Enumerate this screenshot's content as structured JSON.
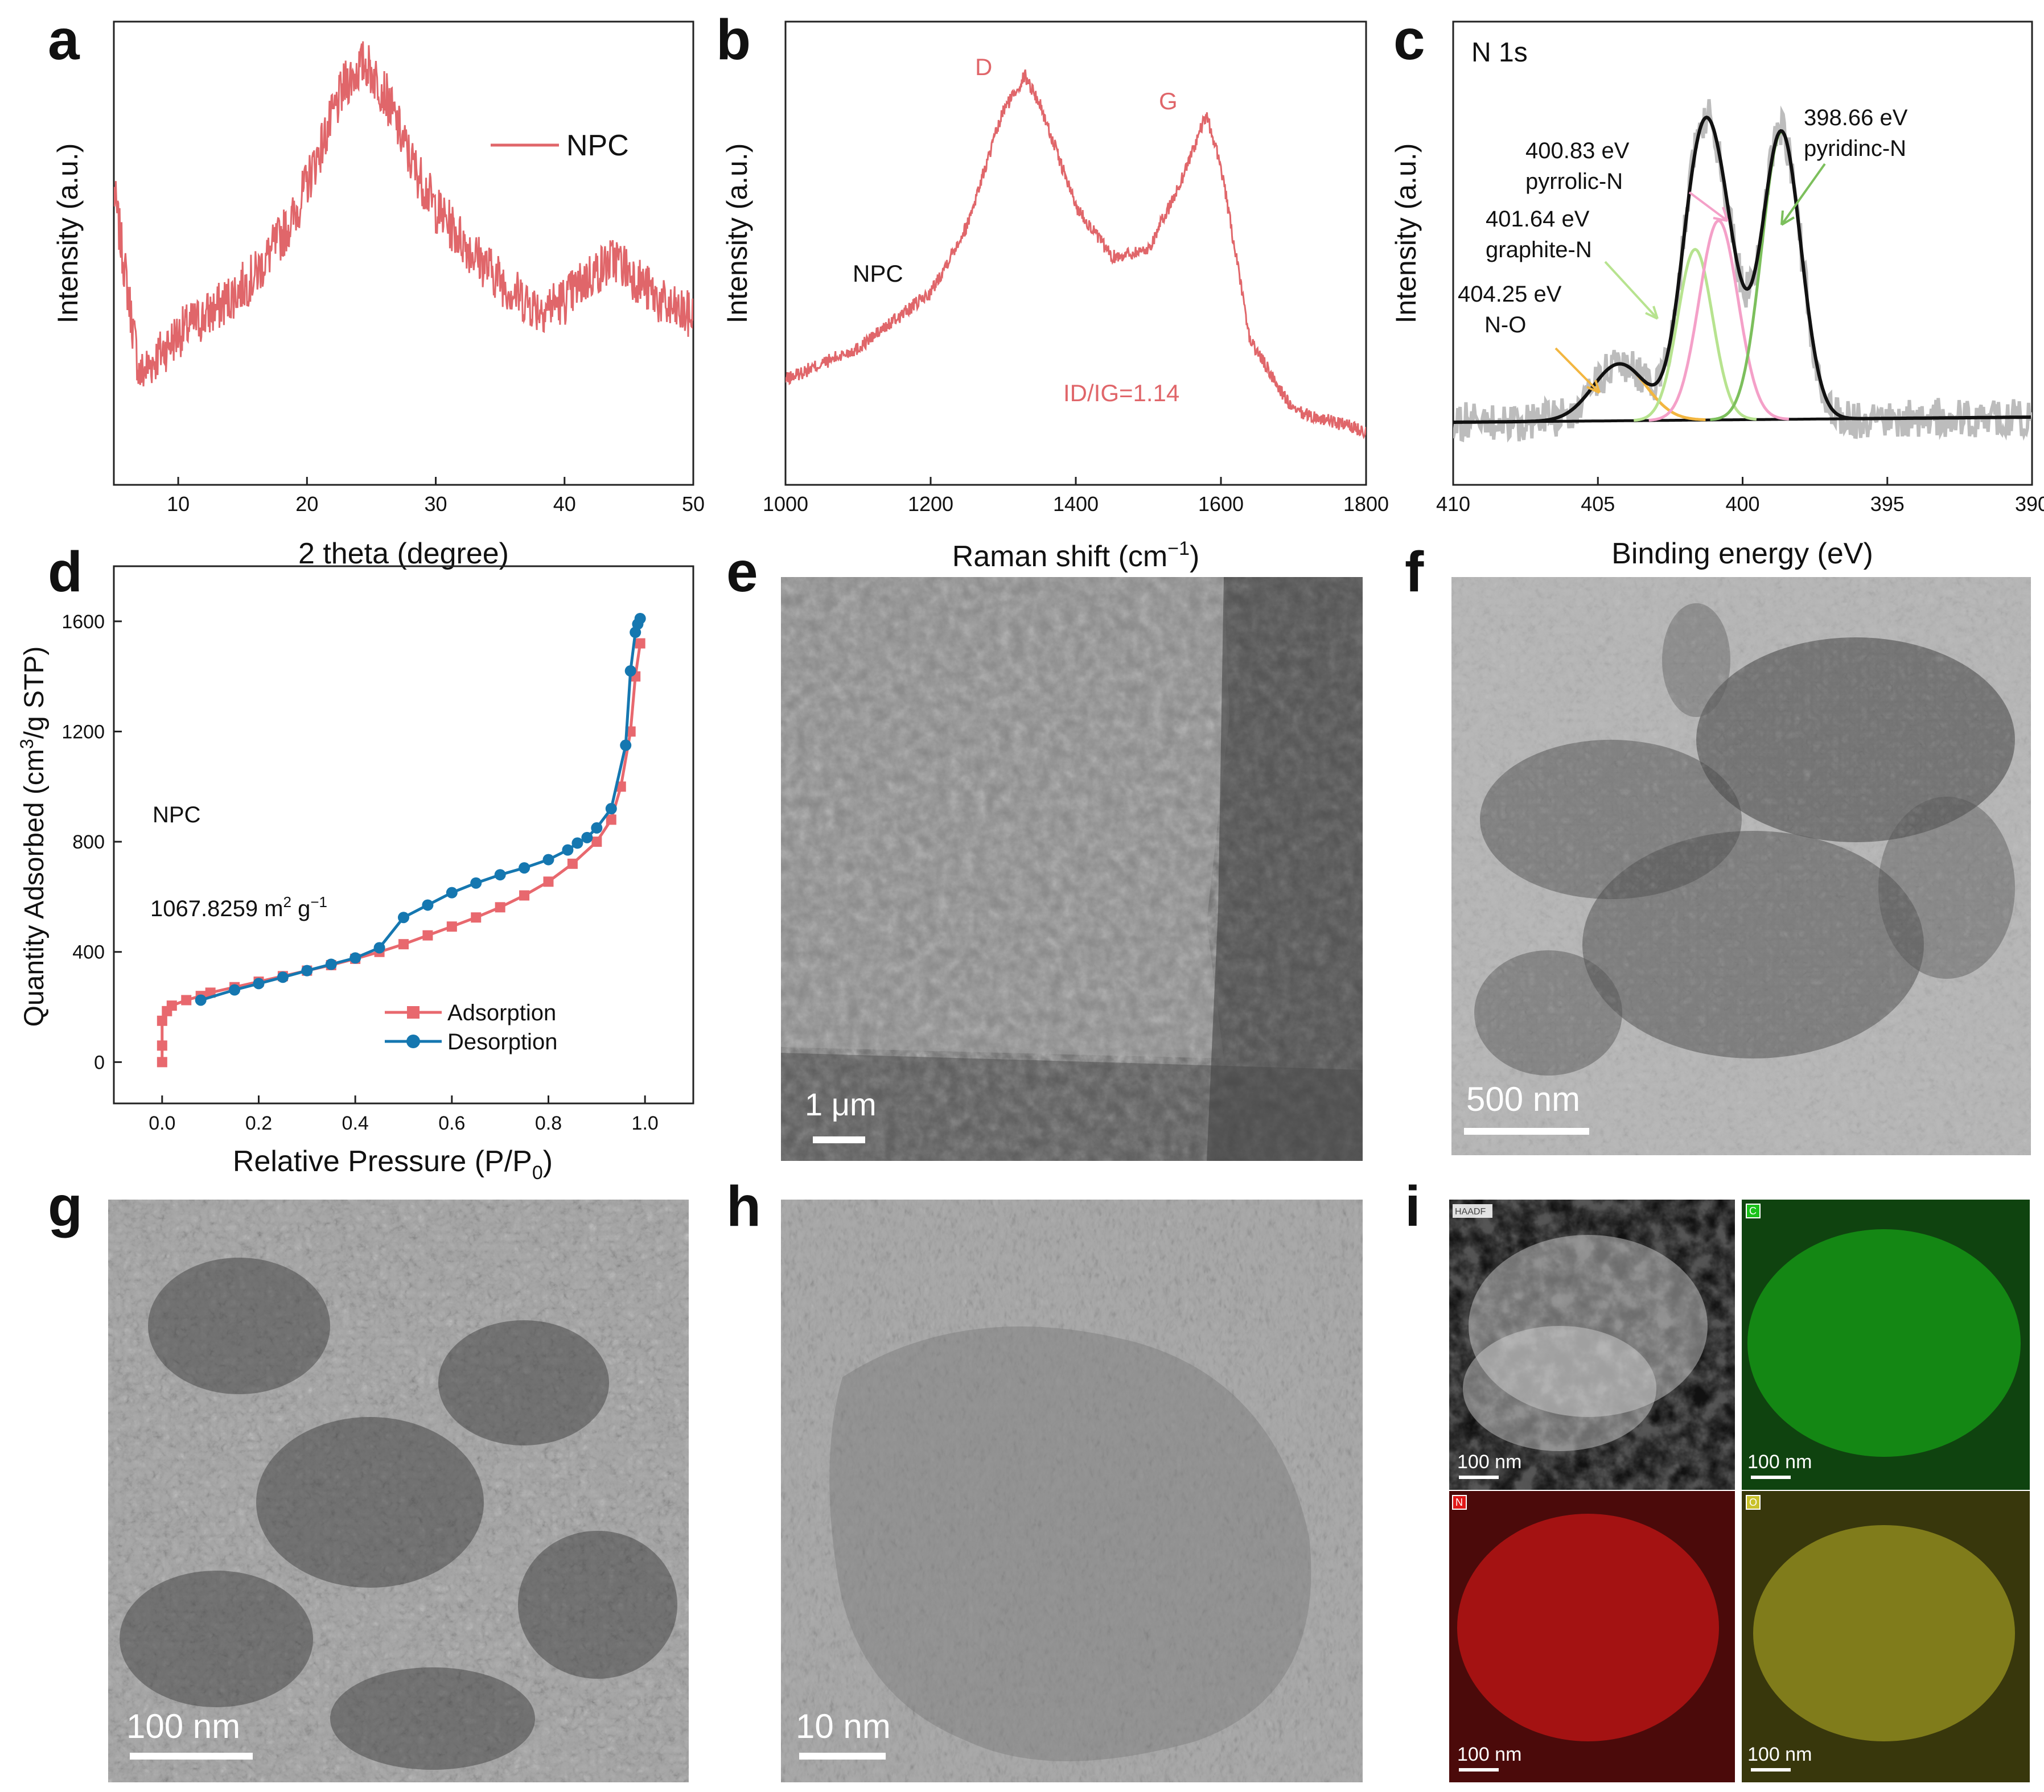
{
  "panel_letters": [
    "a",
    "b",
    "c",
    "d",
    "e",
    "f",
    "g",
    "h",
    "i"
  ],
  "colors": {
    "npc_line": "#e0666a",
    "adsorption": "#e8686e",
    "desorption": "#1577b0",
    "raw_xps": "#bcbcbc",
    "envelope": "#111111",
    "no_fit": "#f2b640",
    "graphitic_fit": "#b7e38f",
    "pyrrolic_fit": "#f4a0c8",
    "pyridinic_fit": "#7cbf5c",
    "eds_c": "#19c119",
    "eds_n": "#e01818",
    "eds_o": "#c9c12a",
    "annotation_red": "#e0666a"
  },
  "text": {
    "a_xlabel": "2 theta (degree)",
    "a_ylabel": "Intensity (a.u.)",
    "a_legend": "NPC",
    "b_xlabel": "Raman shift (cm",
    "b_xlabel_sup": "−1",
    "b_xlabel_end": ")",
    "b_ylabel": "Intensity (a.u.)",
    "b_sample": "NPC",
    "b_peak_d": "D",
    "b_peak_g": "G",
    "b_ratio": "ID/IG=1.14",
    "c_title": "N 1s",
    "c_xlabel": "Binding energy (eV)",
    "c_ylabel": "Intensity (a.u.)",
    "c_pyridinic_ev": "398.66 eV",
    "c_pyridinic_name": "pyridinc-N",
    "c_pyrrolic_ev": "400.83 eV",
    "c_pyrrolic_name": "pyrrolic-N",
    "c_graphite_ev": "401.64 eV",
    "c_graphite_name": "graphite-N",
    "c_no_ev": "404.25 eV",
    "c_no_name": "N-O",
    "d_xlabel": "Relative Pressure (P/P",
    "d_xlabel_sub": "0",
    "d_xlabel_end": ")",
    "d_ylabel_a": "Quantity Adsorbed (cm",
    "d_ylabel_sup": "3",
    "d_ylabel_b": "/g STP)",
    "d_sample": "NPC",
    "d_area": "1067.8259 m",
    "d_area_sup1": "2",
    "d_area_mid": " g",
    "d_area_sup2": "−1",
    "d_legend_ads": "Adsorption",
    "d_legend_des": "Desorption",
    "e_scale": "1 μm",
    "f_scale": "500 nm",
    "g_scale": "100 nm",
    "h_scale": "10 nm",
    "i_scale": "100 nm",
    "i_haadf": "HAADF",
    "i_c": "C",
    "i_n": "N",
    "i_o": "O"
  },
  "chart_data": [
    {
      "panel": "a",
      "type": "line",
      "xlabel": "2 theta (degree)",
      "ylabel": "Intensity (a.u.)",
      "xlim": [
        5,
        50
      ],
      "xticks": [
        10,
        20,
        30,
        40,
        50
      ],
      "series": [
        {
          "name": "NPC",
          "x": [
            5,
            7,
            10,
            13,
            16,
            19,
            21,
            23,
            24.5,
            26,
            28,
            30,
            33,
            36,
            38,
            40,
            42,
            44,
            46,
            48,
            50
          ],
          "y": [
            0.62,
            0.18,
            0.28,
            0.34,
            0.42,
            0.56,
            0.72,
            0.88,
            0.93,
            0.86,
            0.7,
            0.58,
            0.47,
            0.38,
            0.34,
            0.36,
            0.42,
            0.46,
            0.4,
            0.34,
            0.32
          ]
        }
      ]
    },
    {
      "panel": "b",
      "type": "line",
      "xlabel": "Raman shift (cm−1)",
      "ylabel": "Intensity (a.u.)",
      "xlim": [
        1000,
        1800
      ],
      "xticks": [
        1000,
        1200,
        1400,
        1600,
        1800
      ],
      "series": [
        {
          "name": "NPC",
          "x": [
            1000,
            1100,
            1200,
            1250,
            1300,
            1330,
            1350,
            1400,
            1450,
            1500,
            1540,
            1580,
            1600,
            1640,
            1700,
            1800
          ],
          "y": [
            0.18,
            0.26,
            0.4,
            0.57,
            0.86,
            0.95,
            0.88,
            0.62,
            0.49,
            0.51,
            0.66,
            0.85,
            0.72,
            0.28,
            0.1,
            0.05
          ]
        }
      ],
      "annotations": [
        "D",
        "G",
        "ID/IG=1.14",
        "NPC"
      ]
    },
    {
      "panel": "c",
      "type": "line",
      "title": "N 1s",
      "xlabel": "Binding energy (eV)",
      "ylabel": "Intensity (a.u.)",
      "xlim": [
        410,
        390
      ],
      "xticks": [
        410,
        405,
        400,
        395,
        390
      ],
      "peaks": [
        {
          "name": "pyridinc-N",
          "center_ev": 398.66
        },
        {
          "name": "pyrrolic-N",
          "center_ev": 400.83
        },
        {
          "name": "graphite-N",
          "center_ev": 401.64
        },
        {
          "name": "N-O",
          "center_ev": 404.25
        }
      ]
    },
    {
      "panel": "d",
      "type": "line",
      "xlabel": "Relative Pressure (P/P0)",
      "ylabel": "Quantity Adsorbed (cm3/g STP)",
      "xlim": [
        -0.1,
        1.1
      ],
      "ylim": [
        -150,
        1800
      ],
      "xticks": [
        0.0,
        0.2,
        0.4,
        0.6,
        0.8,
        1.0
      ],
      "yticks": [
        0,
        400,
        800,
        1200,
        1600
      ],
      "series": [
        {
          "name": "Adsorption",
          "x": [
            0.0,
            0.0,
            0.0,
            0.01,
            0.02,
            0.05,
            0.08,
            0.1,
            0.15,
            0.2,
            0.25,
            0.3,
            0.35,
            0.4,
            0.45,
            0.5,
            0.55,
            0.6,
            0.65,
            0.7,
            0.75,
            0.8,
            0.85,
            0.9,
            0.93,
            0.95,
            0.97,
            0.98,
            0.99
          ],
          "y": [
            0,
            60,
            150,
            185,
            205,
            225,
            240,
            252,
            272,
            292,
            312,
            332,
            352,
            375,
            400,
            428,
            460,
            492,
            525,
            562,
            605,
            655,
            720,
            800,
            880,
            1000,
            1200,
            1400,
            1520
          ]
        },
        {
          "name": "Desorption",
          "x": [
            0.99,
            0.985,
            0.98,
            0.97,
            0.96,
            0.93,
            0.9,
            0.88,
            0.86,
            0.84,
            0.8,
            0.75,
            0.7,
            0.65,
            0.6,
            0.55,
            0.5,
            0.45,
            0.4,
            0.35,
            0.3,
            0.25,
            0.2,
            0.15,
            0.08
          ],
          "y": [
            1610,
            1590,
            1560,
            1420,
            1150,
            920,
            850,
            815,
            795,
            770,
            735,
            705,
            680,
            650,
            615,
            570,
            525,
            415,
            378,
            355,
            332,
            308,
            285,
            262,
            225
          ]
        }
      ],
      "annotations": [
        "NPC",
        "1067.8259 m2 g−1"
      ]
    }
  ]
}
